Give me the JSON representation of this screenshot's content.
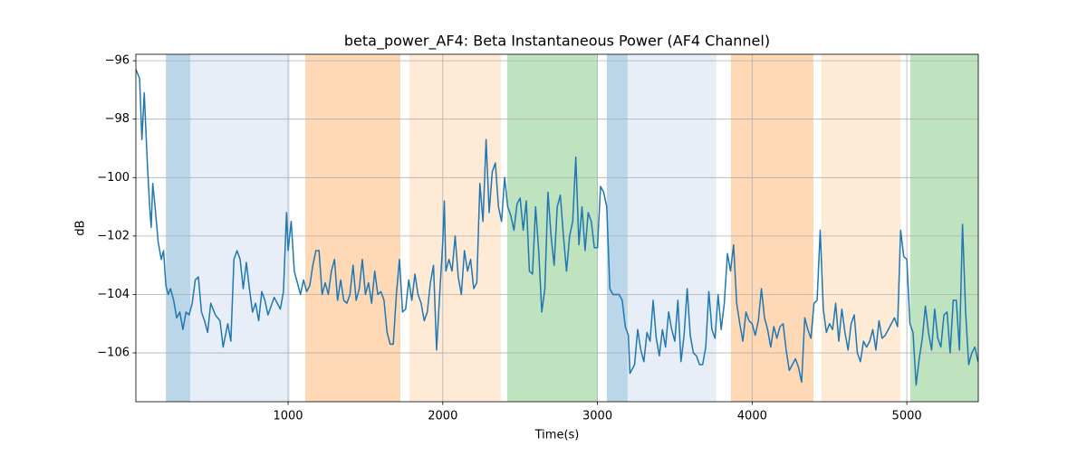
{
  "chart_data": {
    "type": "line",
    "title": "beta_power_AF4: Beta Instantaneous Power (AF4 Channel)",
    "xlabel": "Time(s)",
    "ylabel": "dB",
    "xlim": [
      16,
      5462
    ],
    "ylim": [
      -107.67,
      -95.78
    ],
    "xticks": [
      1000,
      2000,
      3000,
      4000,
      5000
    ],
    "yticks": [
      {
        "value": -96,
        "label": "−96"
      },
      {
        "value": -98,
        "label": "−98"
      },
      {
        "value": -100,
        "label": "−100"
      },
      {
        "value": -102,
        "label": "−102"
      },
      {
        "value": -104,
        "label": "−104"
      },
      {
        "value": -106,
        "label": "−106"
      }
    ],
    "grid": true,
    "span_opacity": 0.3,
    "spans": [
      {
        "start": 210,
        "end": 368,
        "color": "#1f77b4"
      },
      {
        "start": 368,
        "end": 1012,
        "color": "#aec7e8"
      },
      {
        "start": 1111,
        "end": 1726,
        "color": "#ff7f0e"
      },
      {
        "start": 1784,
        "end": 2375,
        "color": "#ffbb78"
      },
      {
        "start": 2416,
        "end": 3000,
        "color": "#2ca02c"
      },
      {
        "start": 3060,
        "end": 3195,
        "color": "#1f77b4"
      },
      {
        "start": 3195,
        "end": 3769,
        "color": "#aec7e8"
      },
      {
        "start": 3863,
        "end": 4396,
        "color": "#ff7f0e"
      },
      {
        "start": 4448,
        "end": 4958,
        "color": "#ffbb78"
      },
      {
        "start": 5022,
        "end": 5462,
        "color": "#2ca02c"
      }
    ],
    "x": [
      16,
      40,
      55,
      70,
      90,
      105,
      115,
      125,
      140,
      160,
      180,
      195,
      210,
      225,
      240,
      260,
      280,
      300,
      320,
      340,
      360,
      380,
      400,
      420,
      440,
      460,
      480,
      500,
      530,
      560,
      580,
      610,
      630,
      650,
      670,
      690,
      710,
      730,
      750,
      770,
      790,
      810,
      830,
      850,
      870,
      890,
      910,
      930,
      950,
      970,
      990,
      1000,
      1020,
      1040,
      1060,
      1080,
      1100,
      1120,
      1140,
      1160,
      1180,
      1200,
      1220,
      1240,
      1260,
      1280,
      1300,
      1320,
      1340,
      1360,
      1380,
      1400,
      1420,
      1440,
      1460,
      1480,
      1500,
      1520,
      1540,
      1560,
      1580,
      1600,
      1620,
      1640,
      1660,
      1680,
      1700,
      1720,
      1740,
      1760,
      1780,
      1800,
      1820,
      1840,
      1860,
      1880,
      1900,
      1920,
      1940,
      1960,
      1980,
      2000,
      2010,
      2020,
      2040,
      2060,
      2080,
      2100,
      2120,
      2140,
      2160,
      2180,
      2200,
      2220,
      2240,
      2260,
      2280,
      2300,
      2320,
      2340,
      2360,
      2380,
      2400,
      2420,
      2440,
      2460,
      2480,
      2500,
      2520,
      2540,
      2560,
      2580,
      2600,
      2620,
      2640,
      2660,
      2680,
      2700,
      2720,
      2740,
      2760,
      2780,
      2800,
      2820,
      2840,
      2860,
      2880,
      2900,
      2920,
      2940,
      2960,
      2980,
      3000,
      3020,
      3040,
      3060,
      3080,
      3100,
      3120,
      3140,
      3160,
      3180,
      3200,
      3210,
      3240,
      3260,
      3280,
      3300,
      3320,
      3340,
      3360,
      3380,
      3400,
      3420,
      3440,
      3460,
      3480,
      3500,
      3520,
      3540,
      3560,
      3580,
      3600,
      3620,
      3640,
      3660,
      3680,
      3700,
      3720,
      3740,
      3760,
      3780,
      3800,
      3820,
      3840,
      3860,
      3880,
      3900,
      3920,
      3940,
      3960,
      3980,
      4000,
      4020,
      4040,
      4060,
      4080,
      4100,
      4120,
      4140,
      4160,
      4180,
      4200,
      4220,
      4240,
      4260,
      4280,
      4300,
      4320,
      4340,
      4360,
      4380,
      4400,
      4420,
      4440,
      4460,
      4480,
      4500,
      4520,
      4540,
      4560,
      4580,
      4600,
      4620,
      4640,
      4660,
      4680,
      4700,
      4720,
      4740,
      4760,
      4780,
      4800,
      4820,
      4840,
      4860,
      4880,
      4900,
      4920,
      4940,
      4960,
      4980,
      5000,
      5020,
      5040,
      5060,
      5080,
      5100,
      5120,
      5140,
      5160,
      5180,
      5200,
      5220,
      5240,
      5260,
      5280,
      5300,
      5320,
      5340,
      5360,
      5380,
      5400,
      5420,
      5440,
      5460
    ],
    "series": [
      {
        "name": "beta_power_AF4",
        "color": "#1f77b4",
        "values": [
          -96.3,
          -96.6,
          -98.7,
          -97.1,
          -99.5,
          -101.0,
          -101.7,
          -100.2,
          -101.0,
          -102.2,
          -102.8,
          -102.5,
          -103.7,
          -104.0,
          -103.8,
          -104.2,
          -104.8,
          -104.6,
          -105.2,
          -104.6,
          -104.7,
          -104.3,
          -103.5,
          -103.4,
          -104.6,
          -104.9,
          -105.3,
          -104.3,
          -104.7,
          -104.9,
          -105.8,
          -105.0,
          -105.6,
          -102.8,
          -102.5,
          -102.8,
          -103.8,
          -102.9,
          -103.8,
          -104.6,
          -104.3,
          -104.9,
          -103.9,
          -104.2,
          -104.7,
          -104.4,
          -104.1,
          -104.3,
          -104.5,
          -103.9,
          -101.2,
          -102.5,
          -101.5,
          -103.2,
          -103.6,
          -104.0,
          -103.5,
          -103.9,
          -103.7,
          -103.0,
          -102.5,
          -102.5,
          -104.0,
          -103.6,
          -104.0,
          -103.2,
          -102.8,
          -104.2,
          -103.5,
          -104.2,
          -104.3,
          -104.0,
          -103.0,
          -104.2,
          -103.8,
          -102.8,
          -104.0,
          -103.6,
          -104.3,
          -103.2,
          -104.0,
          -103.9,
          -104.2,
          -105.3,
          -105.7,
          -105.7,
          -104.0,
          -102.8,
          -104.6,
          -104.5,
          -103.5,
          -104.2,
          -103.3,
          -104.0,
          -104.3,
          -104.9,
          -104.6,
          -103.6,
          -103.0,
          -105.9,
          -104.0,
          -102.2,
          -100.8,
          -103.2,
          -102.8,
          -103.2,
          -102.0,
          -103.4,
          -104.0,
          -102.5,
          -103.2,
          -102.8,
          -103.8,
          -103.6,
          -100.2,
          -101.5,
          -98.7,
          -101.2,
          -99.8,
          -99.5,
          -101.0,
          -101.5,
          -100.0,
          -101.0,
          -101.3,
          -101.8,
          -100.9,
          -100.7,
          -101.8,
          -100.8,
          -103.2,
          -103.3,
          -101.0,
          -102.5,
          -104.6,
          -103.8,
          -100.5,
          -102.0,
          -103.0,
          -101.0,
          -100.6,
          -102.0,
          -103.2,
          -102.0,
          -101.5,
          -99.3,
          -102.3,
          -101.0,
          -102.5,
          -101.2,
          -101.5,
          -102.4,
          -102.4,
          -100.3,
          -100.5,
          -101.0,
          -103.8,
          -104.0,
          -104.0,
          -104.0,
          -104.2,
          -105.1,
          -105.4,
          -106.7,
          -106.4,
          -105.2,
          -105.9,
          -106.3,
          -105.3,
          -105.6,
          -104.2,
          -105.5,
          -106.1,
          -105.2,
          -105.8,
          -104.6,
          -105.2,
          -105.6,
          -104.2,
          -106.3,
          -105.4,
          -103.8,
          -105.4,
          -106.0,
          -106.1,
          -106.4,
          -106.4,
          -105.8,
          -103.9,
          -105.2,
          -105.5,
          -104.0,
          -105.2,
          -104.3,
          -102.6,
          -103.2,
          -102.3,
          -104.3,
          -105.0,
          -105.6,
          -104.6,
          -104.9,
          -105.0,
          -105.4,
          -104.9,
          -103.8,
          -104.8,
          -105.2,
          -105.8,
          -105.1,
          -105.5,
          -105.1,
          -105.0,
          -105.9,
          -106.6,
          -106.4,
          -106.2,
          -106.5,
          -107.0,
          -104.8,
          -105.2,
          -105.5,
          -104.3,
          -104.2,
          -101.8,
          -104.5,
          -105.3,
          -105.0,
          -105.2,
          -104.3,
          -105.6,
          -104.5,
          -105.3,
          -105.9,
          -105.0,
          -104.7,
          -106.0,
          -106.3,
          -105.6,
          -105.8,
          -105.6,
          -105.2,
          -105.9,
          -104.9,
          -105.5,
          -105.4,
          -105.2,
          -105.0,
          -104.8,
          -105.1,
          -101.8,
          -102.7,
          -102.8,
          -105.0,
          -105.3,
          -107.1,
          -106.2,
          -105.5,
          -104.4,
          -105.3,
          -105.9,
          -104.5,
          -105.5,
          -105.8,
          -104.7,
          -104.6,
          -106.0,
          -104.2,
          -104.2,
          -105.9,
          -101.6,
          -104.6,
          -106.4,
          -106.0,
          -105.8,
          -106.3
        ]
      }
    ]
  }
}
